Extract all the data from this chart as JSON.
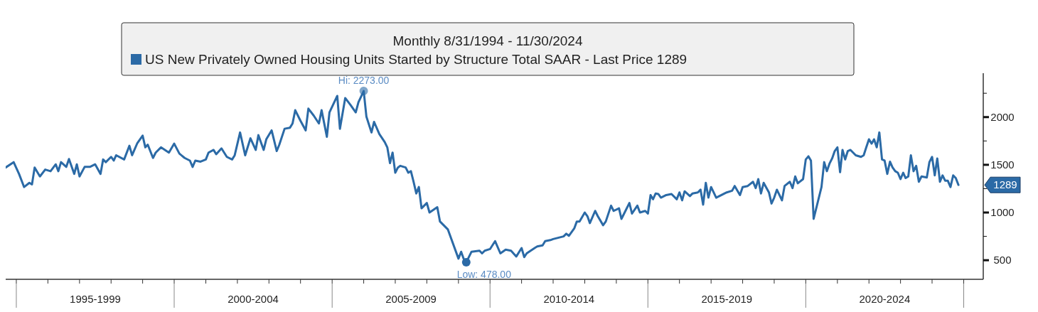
{
  "chart_data": {
    "type": "line",
    "legend_title": "Monthly 8/31/1994 - 11/30/2024",
    "legend": "top",
    "x": [
      "1994-08-31",
      "1994-12",
      "1995-02",
      "1995-04",
      "1995-06",
      "1995-07",
      "1995-08",
      "1995-10",
      "1995-12",
      "1996-02",
      "1996-04",
      "1996-05",
      "1996-06",
      "1996-08",
      "1996-09",
      "1996-11",
      "1996-12",
      "1997-01",
      "1997-03",
      "1997-05",
      "1997-07",
      "1997-09",
      "1997-10",
      "1997-11",
      "1998-01",
      "1998-02",
      "1998-03",
      "1998-06",
      "1998-08",
      "1998-09",
      "1998-11",
      "1999-01",
      "1999-02",
      "1999-03",
      "1999-05",
      "1999-06",
      "1999-08",
      "1999-11",
      "2000-01",
      "2000-03",
      "2000-05",
      "2000-07",
      "2000-08",
      "2000-09",
      "2000-11",
      "2001-01",
      "2001-02",
      "2001-04",
      "2001-05",
      "2001-07",
      "2001-09",
      "2001-11",
      "2001-12",
      "2002-02",
      "2002-04",
      "2002-06",
      "2002-08",
      "2002-09",
      "2002-11",
      "2002-12",
      "2003-02",
      "2003-04",
      "2003-05",
      "2003-07",
      "2003-09",
      "2003-10",
      "2003-11",
      "2004-01",
      "2004-03",
      "2004-04",
      "2004-06",
      "2004-08",
      "2004-09",
      "2004-11",
      "2004-12",
      "2005-03",
      "2005-04",
      "2005-06",
      "2005-08",
      "2005-10",
      "2005-11",
      "2006-01",
      "2006-02",
      "2006-04",
      "2006-05",
      "2006-07",
      "2006-09",
      "2006-10",
      "2006-11",
      "2006-12",
      "2007-01",
      "2007-02",
      "2007-03",
      "2007-05",
      "2007-06",
      "2007-07",
      "2007-08",
      "2007-09",
      "2007-10",
      "2007-11",
      "2008-01",
      "2008-02",
      "2008-05",
      "2008-06",
      "2008-09",
      "2009-01",
      "2009-02",
      "2009-03",
      "2009-04",
      "2009-06",
      "2009-09",
      "2009-10",
      "2009-11",
      "2010-01",
      "2010-03",
      "2010-05",
      "2010-07",
      "2010-09",
      "2010-11",
      "2011-01",
      "2011-02",
      "2011-03",
      "2011-06",
      "2011-07",
      "2011-09",
      "2011-10",
      "2011-12",
      "2012-01",
      "2012-05",
      "2012-06",
      "2012-07",
      "2012-09",
      "2012-10",
      "2012-11",
      "2013-01",
      "2013-02",
      "2013-03",
      "2013-05",
      "2013-06",
      "2013-08",
      "2013-09",
      "2013-11",
      "2013-12",
      "2014-02",
      "2014-03",
      "2014-04",
      "2014-06",
      "2014-07",
      "2014-09",
      "2014-10",
      "2014-12",
      "2015-01",
      "2015-02",
      "2015-03",
      "2015-04",
      "2015-05",
      "2015-06",
      "2015-08",
      "2015-10",
      "2015-12",
      "2016-01",
      "2016-02",
      "2016-03",
      "2016-05",
      "2016-06",
      "2016-08",
      "2016-09",
      "2016-10",
      "2016-11",
      "2016-12",
      "2017-01",
      "2017-03",
      "2017-07",
      "2017-09",
      "2017-10",
      "2017-12",
      "2018-01",
      "2018-03",
      "2018-05",
      "2018-06",
      "2018-07",
      "2018-08",
      "2018-09",
      "2018-11",
      "2018-12",
      "2019-01",
      "2019-02",
      "2019-04",
      "2019-05",
      "2019-07",
      "2019-08",
      "2019-09",
      "2019-10",
      "2019-12",
      "2020-01",
      "2020-02",
      "2020-03",
      "2020-04",
      "2020-07",
      "2020-08",
      "2020-09",
      "2020-10",
      "2020-11",
      "2020-12",
      "2021-01",
      "2021-02",
      "2021-03",
      "2021-04",
      "2021-05",
      "2021-06",
      "2021-08",
      "2021-10",
      "2021-11",
      "2021-12",
      "2022-01",
      "2022-02",
      "2022-03",
      "2022-04",
      "2022-05",
      "2022-06",
      "2022-07",
      "2022-08",
      "2022-09",
      "2022-10",
      "2022-11",
      "2022-12",
      "2023-01",
      "2023-02",
      "2023-03",
      "2023-04",
      "2023-05",
      "2023-06",
      "2023-07",
      "2023-08",
      "2023-09",
      "2023-11",
      "2023-12",
      "2024-01",
      "2024-02",
      "2024-03",
      "2024-04",
      "2024-05",
      "2024-06",
      "2024-07",
      "2024-08",
      "2024-09",
      "2024-10",
      "2024-11"
    ],
    "series": [
      {
        "name": "US New Privately Owned Housing Units Started by Structure Total SAAR - Last Price 1289",
        "color": "#2b6aa6",
        "values": [
          1472,
          1528,
          1405,
          1267,
          1311,
          1294,
          1472,
          1378,
          1450,
          1433,
          1505,
          1433,
          1528,
          1478,
          1561,
          1405,
          1505,
          1378,
          1478,
          1478,
          1505,
          1405,
          1556,
          1528,
          1583,
          1544,
          1600,
          1556,
          1700,
          1600,
          1728,
          1806,
          1683,
          1711,
          1572,
          1628,
          1683,
          1628,
          1722,
          1617,
          1572,
          1544,
          1478,
          1544,
          1533,
          1556,
          1628,
          1656,
          1611,
          1672,
          1583,
          1556,
          1600,
          1839,
          1600,
          1778,
          1656,
          1811,
          1656,
          1767,
          1861,
          1644,
          1711,
          1878,
          1889,
          1933,
          2072,
          1961,
          1861,
          2089,
          2017,
          1933,
          2072,
          1794,
          2050,
          2222,
          1878,
          2200,
          2128,
          2050,
          2156,
          2273,
          2006,
          1839,
          1950,
          1822,
          1739,
          1683,
          1517,
          1628,
          1417,
          1472,
          1489,
          1472,
          1417,
          1433,
          1322,
          1200,
          1267,
          1044,
          1100,
          1000,
          1056,
          906,
          822,
          517,
          589,
          517,
          478,
          589,
          600,
          572,
          600,
          617,
          700,
          572,
          611,
          600,
          539,
          628,
          533,
          572,
          628,
          644,
          656,
          700,
          711,
          722,
          750,
          778,
          756,
          833,
          906,
          906,
          1000,
          961,
          889,
          1017,
          961,
          867,
          906,
          1072,
          1017,
          1044,
          933,
          989,
          1100,
          989,
          1072,
          1000,
          1017,
          989,
          1183,
          1139,
          1200,
          1194,
          1156,
          1183,
          1194,
          1139,
          1211,
          1128,
          1222,
          1172,
          1200,
          1211,
          1239,
          1083,
          1311,
          1156,
          1267,
          1156,
          1211,
          1228,
          1278,
          1183,
          1267,
          1278,
          1322,
          1256,
          1350,
          1200,
          1311,
          1211,
          1094,
          1156,
          1239,
          1128,
          1278,
          1322,
          1256,
          1378,
          1306,
          1350,
          1556,
          1589,
          1544,
          933,
          1267,
          1528,
          1433,
          1511,
          1567,
          1644,
          1683,
          1422,
          1656,
          1556,
          1644,
          1656,
          1600,
          1583,
          1600,
          1683,
          1767,
          1722,
          1767,
          1683,
          1839,
          1556,
          1544,
          1405,
          1533,
          1472,
          1433,
          1417,
          1350,
          1417,
          1361,
          1378,
          1600,
          1433,
          1489,
          1322,
          1378,
          1367,
          1528,
          1583,
          1389,
          1567,
          1322,
          1389,
          1333,
          1333,
          1267,
          1389,
          1361,
          1289
        ]
      }
    ],
    "xlim": [
      "1994-08-31",
      "2025-08-15"
    ],
    "xticks": [
      {
        "value": "1995-01-01",
        "label": null
      },
      {
        "value": "1996-01-01",
        "label": null
      },
      {
        "value": "1997-01-01",
        "label": null
      },
      {
        "value": "1997-07-02",
        "label": "1995-1999"
      },
      {
        "value": "1998-01-01",
        "label": null
      },
      {
        "value": "1999-01-01",
        "label": null
      },
      {
        "value": "2000-01-01",
        "label": null
      },
      {
        "value": "2001-01-01",
        "label": null
      },
      {
        "value": "2002-01-01",
        "label": null
      },
      {
        "value": "2002-07-02",
        "label": "2000-2004"
      },
      {
        "value": "2003-01-01",
        "label": null
      },
      {
        "value": "2004-01-01",
        "label": null
      },
      {
        "value": "2005-01-01",
        "label": null
      },
      {
        "value": "2006-01-01",
        "label": null
      },
      {
        "value": "2007-01-01",
        "label": null
      },
      {
        "value": "2007-07-02",
        "label": "2005-2009"
      },
      {
        "value": "2008-01-01",
        "label": null
      },
      {
        "value": "2009-01-01",
        "label": null
      },
      {
        "value": "2010-01-01",
        "label": null
      },
      {
        "value": "2011-01-01",
        "label": null
      },
      {
        "value": "2012-01-01",
        "label": null
      },
      {
        "value": "2012-07-02",
        "label": "2010-2014"
      },
      {
        "value": "2013-01-01",
        "label": null
      },
      {
        "value": "2014-01-01",
        "label": null
      },
      {
        "value": "2015-01-01",
        "label": null
      },
      {
        "value": "2016-01-01",
        "label": null
      },
      {
        "value": "2017-01-01",
        "label": null
      },
      {
        "value": "2017-07-02",
        "label": "2015-2019"
      },
      {
        "value": "2018-01-01",
        "label": null
      },
      {
        "value": "2019-01-01",
        "label": null
      },
      {
        "value": "2020-01-01",
        "label": null
      },
      {
        "value": "2021-01-01",
        "label": null
      },
      {
        "value": "2022-01-01",
        "label": null
      },
      {
        "value": "2022-07-02",
        "label": "2020-2024"
      },
      {
        "value": "2023-01-01",
        "label": null
      },
      {
        "value": "2024-01-01",
        "label": null
      },
      {
        "value": "2025-01-01",
        "label": null
      }
    ],
    "ylim": [
      300,
      2460
    ],
    "yticks": [
      500,
      {
        "value": 750,
        "label": null
      },
      1000,
      {
        "value": 1250,
        "label": null
      },
      1500,
      {
        "value": 1750,
        "label": null
      },
      2000,
      {
        "value": 2250,
        "label": null
      }
    ],
    "grid": false,
    "annotations": [
      {
        "text": "Hi: 2273.00",
        "x": "2006-01",
        "y": 2273
      },
      {
        "text": "Low: 478.00",
        "x": "2009-04",
        "y": 478
      },
      "1289"
    ]
  }
}
